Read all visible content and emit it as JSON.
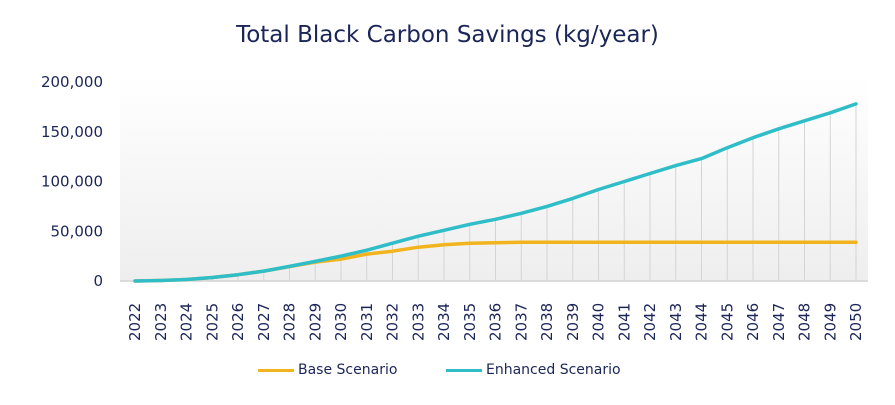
{
  "chart_data": {
    "type": "line",
    "title": "Total Black Carbon Savings (kg/year)",
    "xlabel": "",
    "ylabel": "",
    "x": [
      "2022",
      "2023",
      "2024",
      "2025",
      "2026",
      "2027",
      "2028",
      "2029",
      "2030",
      "2031",
      "2032",
      "2033",
      "2034",
      "2035",
      "2036",
      "2037",
      "2038",
      "2039",
      "2040",
      "2041",
      "2042",
      "2043",
      "2044",
      "2045",
      "2046",
      "2047",
      "2048",
      "2049",
      "2050"
    ],
    "ylim": [
      0,
      200000
    ],
    "yticks": [
      "0",
      "50,000",
      "100,000",
      "150,000",
      "200,000"
    ],
    "ytick_values": [
      0,
      50000,
      100000,
      150000,
      200000
    ],
    "grid": "vertical",
    "legend": "bottom",
    "series": [
      {
        "name": "Base Scenario",
        "color": "#F2B41E",
        "values": [
          0,
          500,
          1500,
          3500,
          6300,
          10000,
          14500,
          19000,
          22000,
          27000,
          30000,
          34000,
          36500,
          38000,
          38500,
          39000,
          39000,
          39000,
          39000,
          39000,
          39000,
          39000,
          39000,
          39000,
          39000,
          39000,
          39000,
          39000,
          39000
        ]
      },
      {
        "name": "Enhanced Scenario",
        "color": "#2FBDC8",
        "values": [
          0,
          500,
          1500,
          3500,
          6300,
          10000,
          14700,
          19700,
          25000,
          31000,
          38000,
          45000,
          51000,
          57000,
          62000,
          68000,
          75000,
          83000,
          92000,
          100000,
          108000,
          116000,
          123000,
          134000,
          144000,
          153000,
          161000,
          169000,
          178000
        ]
      }
    ]
  }
}
